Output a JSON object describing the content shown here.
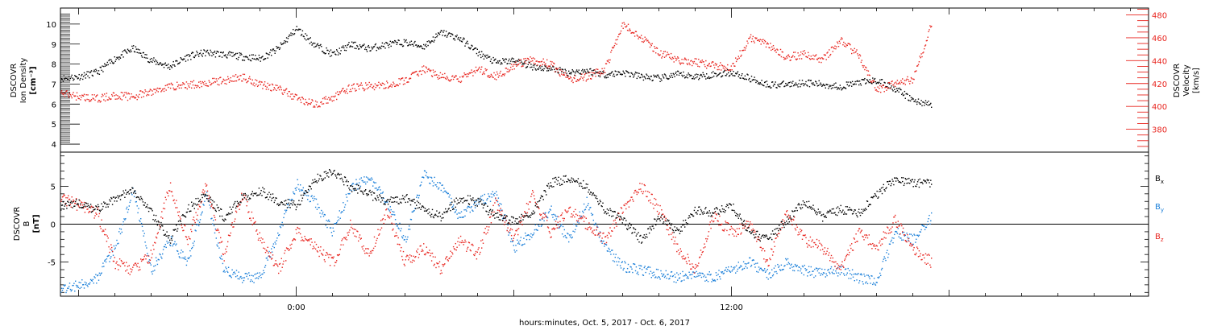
{
  "chart_data": [
    {
      "type": "scatter",
      "panel": "top",
      "ylabel_left": [
        "DSCOVR",
        "Ion Density",
        "[cm⁻³]"
      ],
      "ylabel_right": [
        "DSCOVR",
        "Velocity",
        "[km/s]"
      ],
      "ylim_left": [
        3.6,
        10.8
      ],
      "ylim_right": [
        360,
        486
      ],
      "yticks_left": [
        "4",
        "5",
        "6",
        "7",
        "8",
        "9",
        "10"
      ],
      "yticks_right": [
        "380",
        "400",
        "420",
        "440",
        "460",
        "480"
      ],
      "grid": false,
      "colors": {
        "density": "#000000",
        "velocity": "#e8251f"
      },
      "series": [
        {
          "axis": "left",
          "x": [
            -6.5,
            -6,
            -5.5,
            -5,
            -4.5,
            -4,
            -3.5,
            -3,
            -2.5,
            -2,
            -1.5,
            -1,
            -0.5,
            0,
            0.5,
            1,
            1.5,
            2,
            2.5,
            3,
            3.5,
            4,
            4.5,
            5,
            5.5,
            6,
            6.5,
            7,
            7.5,
            8,
            8.5,
            9,
            9.5,
            10,
            10.5,
            11,
            11.5,
            12,
            12.5,
            13,
            13.5,
            14,
            14.5,
            15,
            15.5,
            16,
            16.5,
            17,
            17.5
          ],
          "values": [
            7.3,
            7.4,
            7.6,
            8.3,
            8.8,
            8.2,
            7.9,
            8.4,
            8.6,
            8.5,
            8.4,
            8.3,
            8.8,
            9.8,
            9.0,
            8.5,
            9.0,
            8.8,
            9.0,
            9.1,
            8.9,
            9.6,
            9.3,
            8.6,
            8.1,
            8.2,
            7.9,
            7.8,
            7.6,
            7.7,
            7.5,
            7.6,
            7.4,
            7.3,
            7.5,
            7.4,
            7.5,
            7.6,
            7.3,
            7.0,
            7.0,
            7.1,
            7.0,
            6.9,
            7.1,
            7.2,
            6.8,
            6.2,
            6.0
          ]
        },
        {
          "axis": "right",
          "x": [
            -6.5,
            -6,
            -5.5,
            -5,
            -4.5,
            -4,
            -3.5,
            -3,
            -2.5,
            -2,
            -1.5,
            -1,
            -0.5,
            0,
            0.5,
            1,
            1.5,
            2,
            2.5,
            3,
            3.5,
            4,
            4.5,
            5,
            5.5,
            6,
            6.5,
            7,
            7.5,
            8,
            8.5,
            9,
            9.5,
            10,
            10.5,
            11,
            11.5,
            12,
            12.5,
            13,
            13.5,
            14,
            14.5,
            15,
            15.5,
            16,
            16.5,
            17,
            17.5
          ],
          "values": [
            412,
            409,
            407,
            410,
            409,
            413,
            418,
            419,
            421,
            423,
            426,
            420,
            416,
            408,
            402,
            408,
            417,
            418,
            419,
            423,
            433,
            426,
            424,
            433,
            427,
            436,
            441,
            437,
            424,
            426,
            433,
            472,
            461,
            447,
            441,
            439,
            436,
            435,
            460,
            455,
            443,
            446,
            441,
            458,
            445,
            414,
            421,
            424,
            472
          ]
        }
      ]
    },
    {
      "type": "scatter",
      "panel": "bottom",
      "ylabel": [
        "DSCOVR",
        "B",
        "[nT]"
      ],
      "ylim": [
        -9.5,
        9.5
      ],
      "yticks": [
        "-5",
        "0",
        "5"
      ],
      "xlabel": "hours:minutes, Oct.  5, 2017 - Oct.  6, 2017",
      "xtick_labels": [
        "0:00",
        "12:00"
      ],
      "xlim": [
        -6.5,
        23.5
      ],
      "reference_line": 0,
      "grid": false,
      "legend": [
        "Bx",
        "By",
        "Bz"
      ],
      "legend_placement": "right",
      "colors": {
        "Bx": "#000000",
        "By": "#1a7fd9",
        "Bz": "#e8251f"
      },
      "series": [
        {
          "name": "Bx",
          "x": [
            -6.5,
            -6,
            -5.5,
            -5,
            -4.5,
            -4,
            -3.5,
            -3,
            -2.5,
            -2,
            -1.5,
            -1,
            -0.5,
            0,
            0.5,
            1,
            1.5,
            2,
            2.5,
            3,
            3.5,
            4,
            4.5,
            5,
            5.5,
            6,
            6.5,
            7,
            7.5,
            8,
            8.5,
            9,
            9.5,
            10,
            10.5,
            11,
            11.5,
            12,
            12.5,
            13,
            13.5,
            14,
            14.5,
            15,
            15.5,
            16,
            16.5,
            17,
            17.5
          ],
          "values": [
            2.5,
            2.8,
            2.0,
            3.5,
            4.5,
            1.5,
            -2,
            2.0,
            4.0,
            1.0,
            3.5,
            4.5,
            3.0,
            2.5,
            6.0,
            7.0,
            5.0,
            4.0,
            3.0,
            3.5,
            2.0,
            1.0,
            3.5,
            3.0,
            1.0,
            0.5,
            1.5,
            5.5,
            6.0,
            5.0,
            2.0,
            0.5,
            -2,
            1.0,
            -1,
            2.0,
            1.5,
            2.5,
            -1,
            -2,
            0.5,
            3.0,
            1.0,
            2.0,
            1.5,
            4.0,
            6.0,
            5.5,
            5.5
          ]
        },
        {
          "name": "By",
          "x": [
            -6.5,
            -6,
            -5.5,
            -5,
            -4.5,
            -4,
            -3.5,
            -3,
            -2.5,
            -2,
            -1.5,
            -1,
            -0.5,
            0,
            0.5,
            1,
            1.5,
            2,
            2.5,
            3,
            3.5,
            4,
            4.5,
            5,
            5.5,
            6,
            6.5,
            7,
            7.5,
            8,
            8.5,
            9,
            9.5,
            10,
            10.5,
            11,
            11.5,
            12,
            12.5,
            13,
            13.5,
            14,
            14.5,
            15,
            15.5,
            16,
            16.5,
            17,
            17.5
          ],
          "values": [
            -8.5,
            -8,
            -7,
            -3,
            4.5,
            -6,
            -2,
            -5,
            4,
            -6,
            -7,
            -7,
            -1,
            5.5,
            3,
            -1,
            5,
            6,
            3,
            -2,
            6.5,
            5,
            1,
            3,
            4,
            -3,
            -1,
            2,
            -2,
            3,
            -3,
            -5.5,
            -6,
            -6.5,
            -7,
            -6.5,
            -7,
            -6,
            -5,
            -6.5,
            -5,
            -6,
            -6.5,
            -6,
            -7,
            -7.5,
            -1,
            -2,
            1
          ]
        },
        {
          "name": "Bz",
          "x": [
            -6.5,
            -6,
            -5.5,
            -5,
            -4.5,
            -4,
            -3.5,
            -3,
            -2.5,
            -2,
            -1.5,
            -1,
            -0.5,
            0,
            0.5,
            1,
            1.5,
            2,
            2.5,
            3,
            3.5,
            4,
            4.5,
            5,
            5.5,
            6,
            6.5,
            7,
            7.5,
            8,
            8.5,
            9,
            9.5,
            10,
            10.5,
            11,
            11.5,
            12,
            12.5,
            13,
            13.5,
            14,
            14.5,
            15,
            15.5,
            16,
            16.5,
            17,
            17.5
          ],
          "values": [
            3.5,
            2.5,
            1.5,
            -5,
            -6,
            -4,
            5,
            -2,
            5,
            -4,
            4,
            -2,
            -6,
            -1,
            -3,
            -5,
            0,
            -4,
            2,
            -5,
            -3,
            -6,
            -2,
            -4,
            3,
            -2,
            4,
            -1,
            2,
            0,
            -2,
            2,
            5,
            2,
            -3,
            -6,
            1,
            -1,
            0,
            -5,
            2,
            -2,
            -3,
            -6,
            -1,
            -3,
            0.5,
            -3,
            -5
          ]
        }
      ]
    }
  ]
}
